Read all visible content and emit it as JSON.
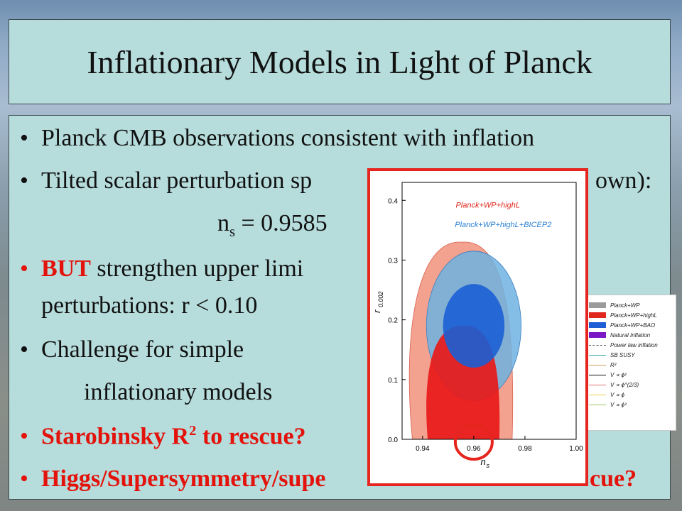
{
  "slide": {
    "title": "Inflationary Models in Light of Planck",
    "bullets": {
      "b1": "Planck CMB observations consistent with inflation",
      "b2_a": "Tilted scalar perturbation sp",
      "b2_b": "own):",
      "ns_label": "n",
      "ns_sub": "s",
      "ns_value": " = 0.9585",
      "b3_red": "BUT",
      "b3_rest": " strengthen upper limi",
      "b3_line2": "perturbations: r < 0.10",
      "b4_line1": "Challenge for simple",
      "b4_line2": "inflationary models",
      "b5_a": "Starobinsky R",
      "b5_sup": "2",
      "b5_b": " to rescue?",
      "b6_a": "Higgs/Supersymmetry/supe",
      "b6_b": "cue?"
    },
    "bullet_char": "•"
  },
  "chart_data": {
    "type": "contour",
    "xlabel": "n_s",
    "ylabel": "r_0.002",
    "xlim": [
      0.932,
      1.0
    ],
    "ylim": [
      0.0,
      0.43
    ],
    "xticks": [
      "0.94",
      "0.96",
      "0.98",
      "1.00"
    ],
    "yticks": [
      "0.0",
      "0.1",
      "0.2",
      "0.3",
      "0.4"
    ],
    "series": [
      {
        "name": "Planck+WP+highL",
        "color": "#e0281e",
        "contours": {
          "68": {
            "ns_range": [
              0.942,
              0.97
            ],
            "r_max": 0.19
          },
          "95": {
            "ns_range": [
              0.936,
              0.975
            ],
            "r_max": 0.33
          }
        }
      },
      {
        "name": "Planck+WP+highL+BICEP2",
        "color": "#2a7fd4",
        "contours": {
          "68": {
            "ns_center": 0.96,
            "r_center": 0.19,
            "ns_range": [
              0.948,
              0.972
            ],
            "r_range": [
              0.11,
              0.25
            ]
          },
          "95": {
            "ns_center": 0.96,
            "r_center": 0.19,
            "ns_range": [
              0.942,
              0.979
            ],
            "r_range": [
              0.06,
              0.31
            ]
          }
        }
      }
    ],
    "highlight": {
      "ns": 0.96,
      "r": 0.0,
      "note": "circle"
    },
    "legend_entries_back": [
      {
        "label": "Planck+WP",
        "color": "#9b9b9b",
        "style": "fill"
      },
      {
        "label": "Planck+WP+highL",
        "color": "#e0281e",
        "style": "fill"
      },
      {
        "label": "Planck+WP+BAO",
        "color": "#1f5fd6",
        "style": "fill"
      },
      {
        "label": "Natural Inflation",
        "color": "#7a18c6",
        "style": "fill"
      },
      {
        "label": "Power law inflation",
        "color": "#555555",
        "style": "dash"
      },
      {
        "label": "SB SUSY",
        "color": "#2fa6a6",
        "style": "line"
      },
      {
        "label": "R²",
        "color": "#d49a57",
        "style": "line"
      },
      {
        "label": "V ∝ ϕ²",
        "color": "#111111",
        "style": "line"
      },
      {
        "label": "V ∝ ϕ^(2/3)",
        "color": "#e07070",
        "style": "line"
      },
      {
        "label": "V ∝ ϕ",
        "color": "#e8d050",
        "style": "line"
      },
      {
        "label": "V ∝ ϕ³",
        "color": "#a0c860",
        "style": "line"
      }
    ]
  }
}
